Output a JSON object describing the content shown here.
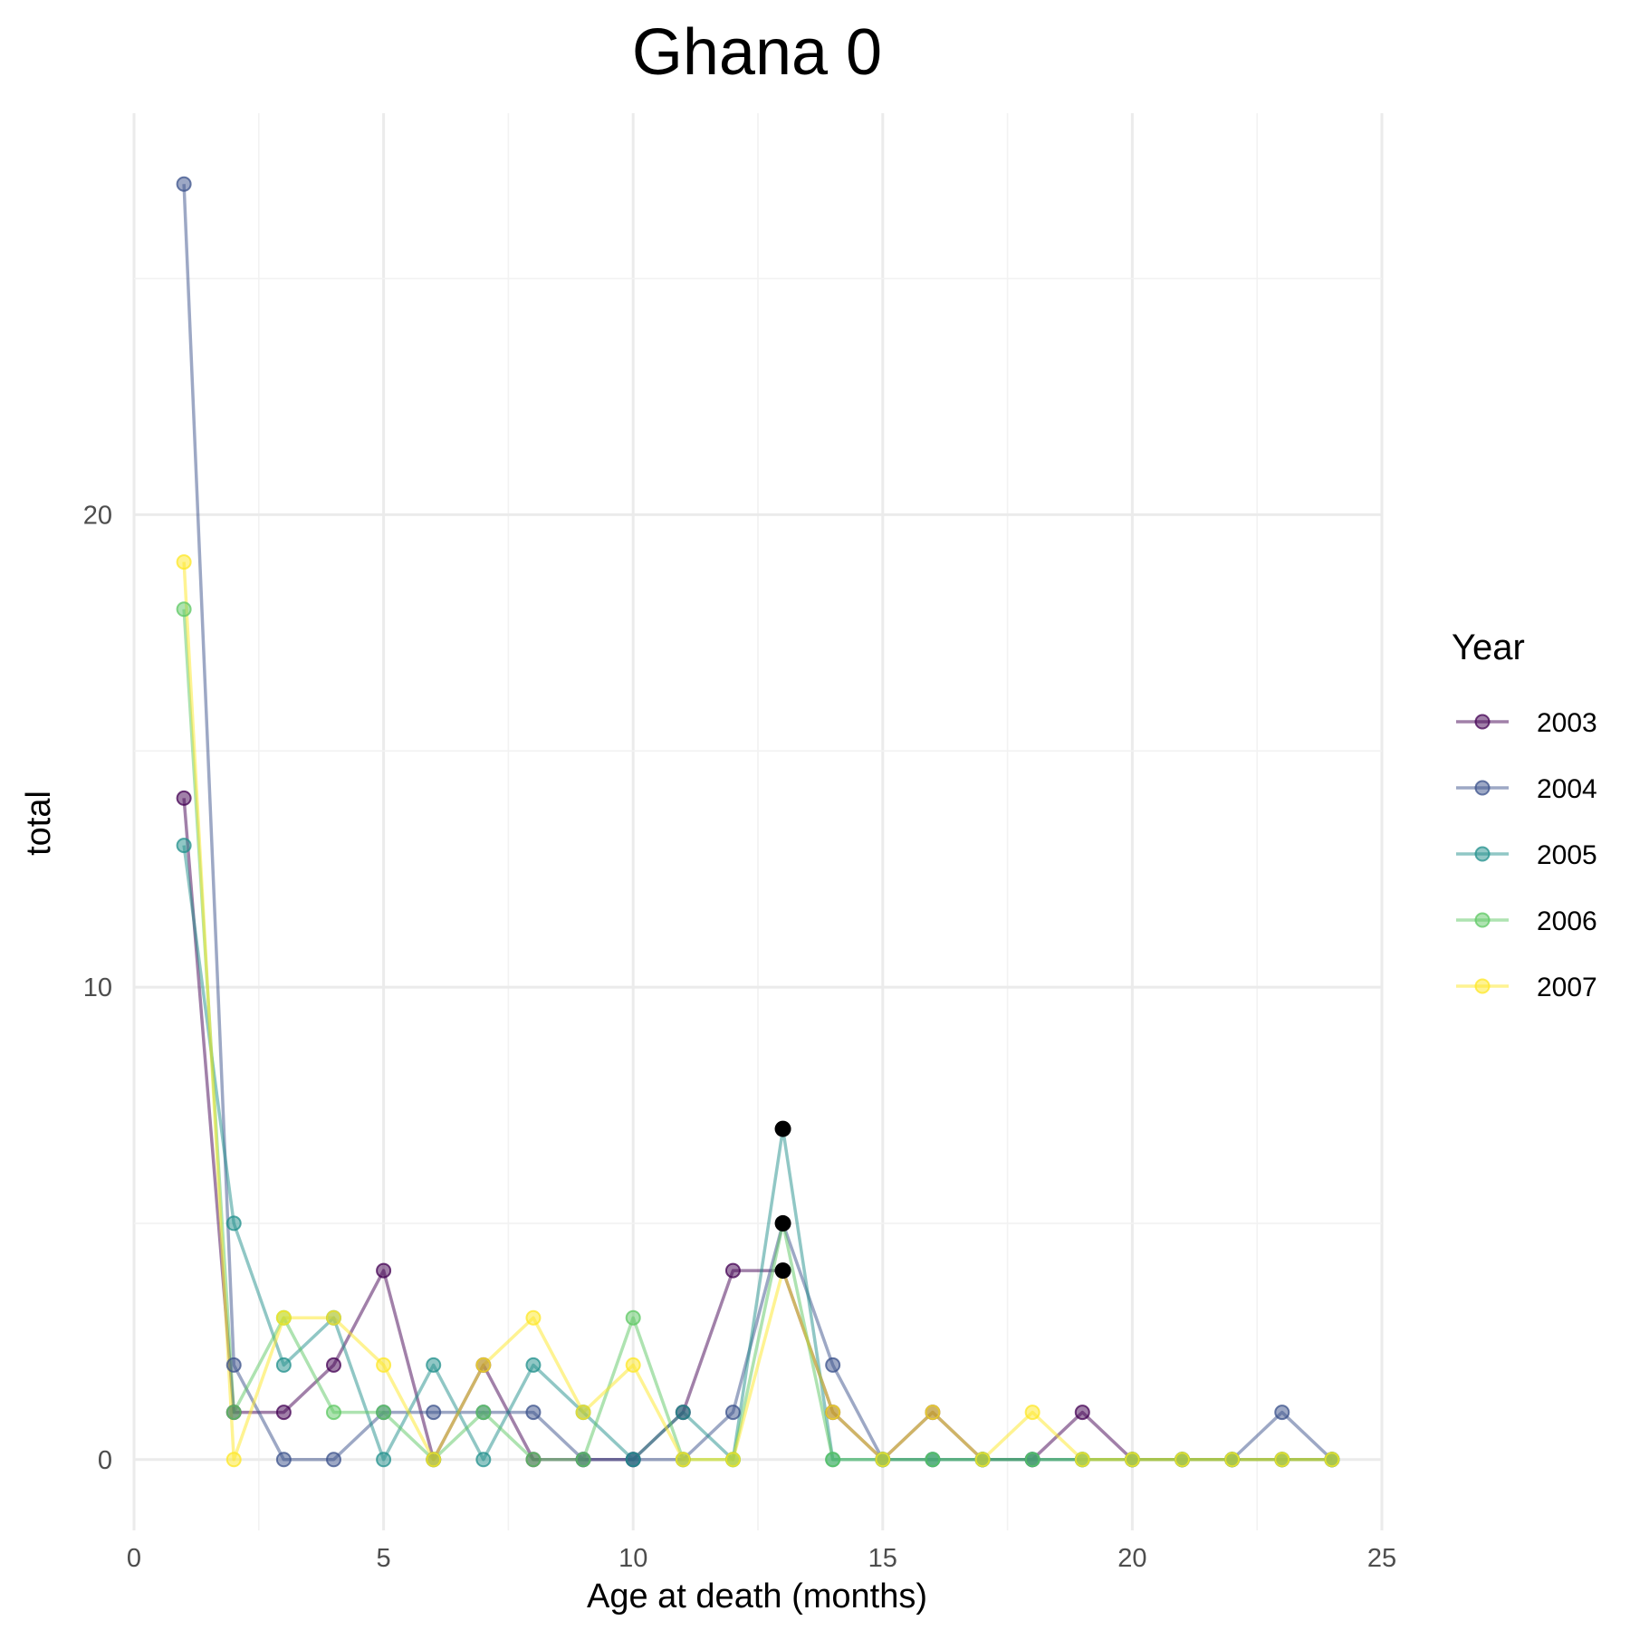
{
  "chart_data": {
    "type": "line",
    "title": "Ghana 0",
    "xlabel": "Age at death (months)",
    "ylabel": "total",
    "xlim": [
      0,
      25
    ],
    "ylim": [
      -1.5,
      28.5
    ],
    "x_ticks": [
      0,
      5,
      10,
      15,
      20,
      25
    ],
    "y_ticks": [
      0,
      10,
      20
    ],
    "grid": true,
    "legend": {
      "title": "Year",
      "position": "right"
    },
    "x": [
      1,
      2,
      3,
      4,
      5,
      6,
      7,
      8,
      9,
      10,
      11,
      12,
      13,
      14,
      15,
      16,
      17,
      18,
      19,
      20,
      21,
      22,
      23,
      24
    ],
    "series": [
      {
        "name": "2003",
        "color": "#440154",
        "values": [
          14,
          1,
          1,
          2,
          4,
          0,
          2,
          0,
          0,
          0,
          1,
          4,
          4,
          1,
          0,
          1,
          0,
          0,
          1,
          0,
          0,
          0,
          0,
          0
        ]
      },
      {
        "name": "2004",
        "color": "#3B528B",
        "values": [
          27,
          2,
          0,
          0,
          1,
          1,
          1,
          1,
          0,
          0,
          0,
          1,
          5,
          2,
          0,
          0,
          0,
          0,
          0,
          0,
          0,
          0,
          1,
          0
        ]
      },
      {
        "name": "2005",
        "color": "#21908C",
        "values": [
          13,
          5,
          2,
          3,
          0,
          2,
          0,
          2,
          1,
          0,
          1,
          0,
          7,
          0,
          0,
          0,
          0,
          0,
          0,
          0,
          0,
          0,
          0,
          0
        ]
      },
      {
        "name": "2006",
        "color": "#5DC863",
        "values": [
          18,
          1,
          3,
          1,
          1,
          0,
          1,
          0,
          0,
          3,
          0,
          0,
          5,
          0,
          0,
          0,
          0,
          0,
          0,
          0,
          0,
          0,
          0,
          0
        ]
      },
      {
        "name": "2007",
        "color": "#FDE725",
        "values": [
          19,
          0,
          3,
          3,
          2,
          0,
          2,
          3,
          1,
          2,
          0,
          0,
          4,
          1,
          0,
          1,
          0,
          1,
          0,
          0,
          0,
          0,
          0,
          0
        ]
      }
    ],
    "highlighted_points": [
      {
        "x": 13,
        "y": 7,
        "color": "#000000"
      },
      {
        "x": 13,
        "y": 5,
        "color": "#000000"
      },
      {
        "x": 13,
        "y": 4,
        "color": "#000000"
      }
    ]
  }
}
